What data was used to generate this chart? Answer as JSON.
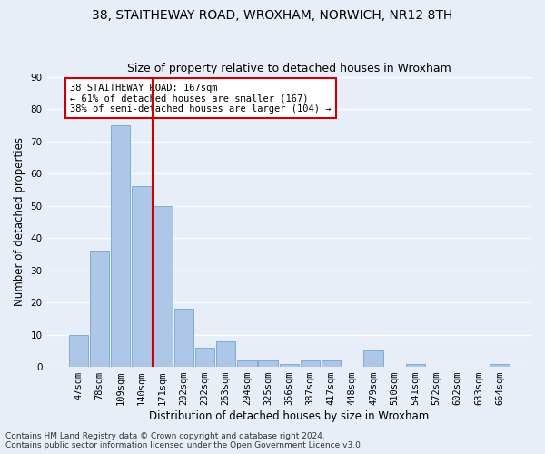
{
  "title1": "38, STAITHEWAY ROAD, WROXHAM, NORWICH, NR12 8TH",
  "title2": "Size of property relative to detached houses in Wroxham",
  "xlabel": "Distribution of detached houses by size in Wroxham",
  "ylabel": "Number of detached properties",
  "footnote1": "Contains HM Land Registry data © Crown copyright and database right 2024.",
  "footnote2": "Contains public sector information licensed under the Open Government Licence v3.0.",
  "bar_labels": [
    "47sqm",
    "78sqm",
    "109sqm",
    "140sqm",
    "171sqm",
    "202sqm",
    "232sqm",
    "263sqm",
    "294sqm",
    "325sqm",
    "356sqm",
    "387sqm",
    "417sqm",
    "448sqm",
    "479sqm",
    "510sqm",
    "541sqm",
    "572sqm",
    "602sqm",
    "633sqm",
    "664sqm"
  ],
  "bar_values": [
    10,
    36,
    75,
    56,
    50,
    18,
    6,
    8,
    2,
    2,
    1,
    2,
    2,
    0,
    5,
    0,
    1,
    0,
    0,
    0,
    1
  ],
  "bar_color": "#aec6e8",
  "bar_edge_color": "#7aaed0",
  "vline_color": "#cc0000",
  "annotation_text": "38 STAITHEWAY ROAD: 167sqm\n← 61% of detached houses are smaller (167)\n38% of semi-detached houses are larger (104) →",
  "annotation_box_color": "#ffffff",
  "annotation_box_edge_color": "#cc0000",
  "ylim": [
    0,
    90
  ],
  "yticks": [
    0,
    10,
    20,
    30,
    40,
    50,
    60,
    70,
    80,
    90
  ],
  "bg_color": "#e8eef8",
  "grid_color": "#ffffff",
  "title1_fontsize": 10,
  "title2_fontsize": 9,
  "axis_label_fontsize": 8.5,
  "tick_fontsize": 7.5,
  "footnote_fontsize": 6.5
}
